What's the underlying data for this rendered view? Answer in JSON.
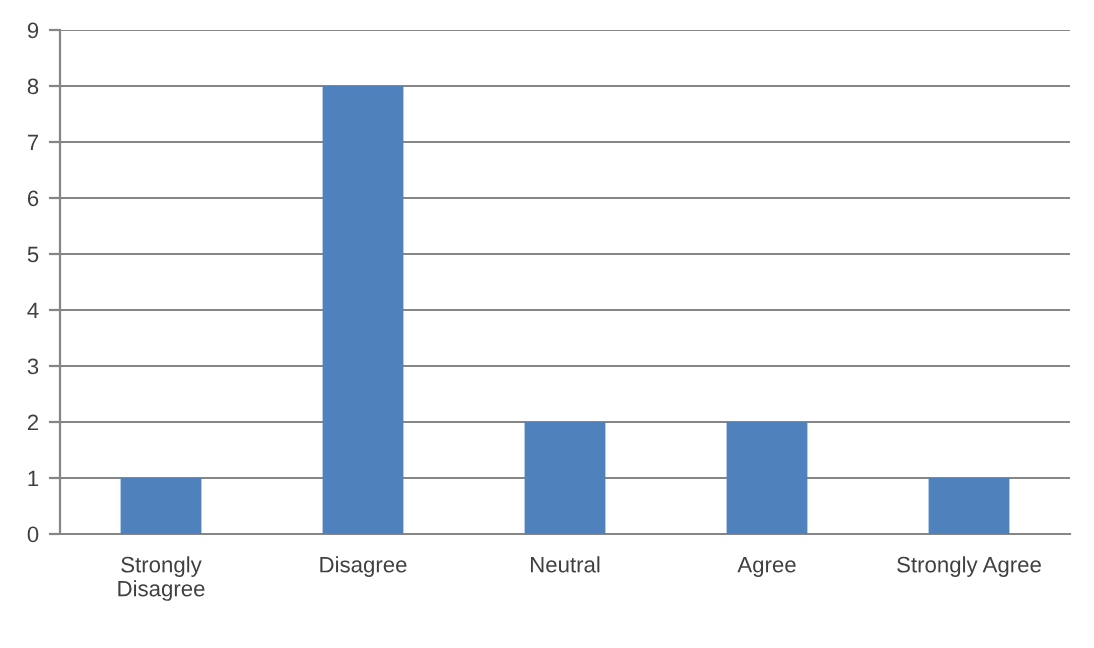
{
  "chart_data": {
    "type": "bar",
    "categories": [
      "Strongly\nDisagree",
      "Disagree",
      "Neutral",
      "Agree",
      "Strongly Agree"
    ],
    "values": [
      1,
      8,
      2,
      2,
      1
    ],
    "color": "#4f81bd",
    "ylim": [
      0,
      9
    ],
    "yticks": [
      0,
      1,
      2,
      3,
      4,
      5,
      6,
      7,
      8,
      9
    ],
    "grid": "y",
    "legend": false
  }
}
